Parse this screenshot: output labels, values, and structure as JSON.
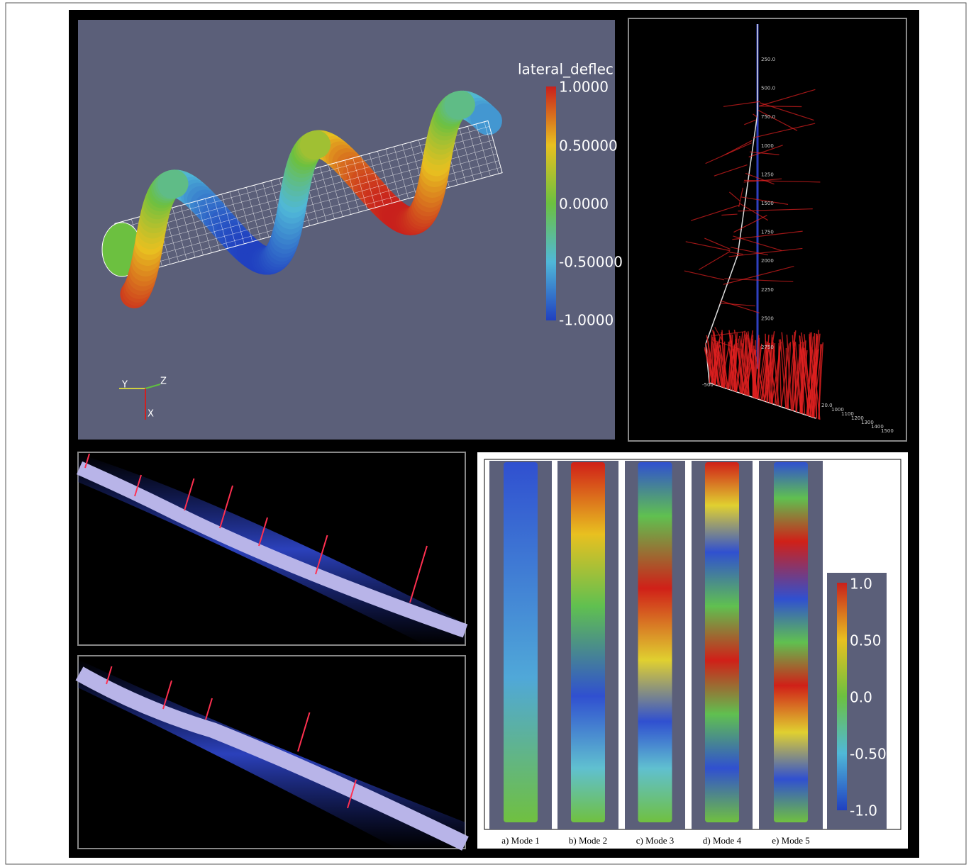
{
  "helix_panel": {
    "colorbar_title": "lateral_deflec",
    "colorbar_labels": [
      "1.0000",
      "0.50000",
      "0.0000",
      "-0.50000",
      "-1.0000"
    ],
    "axes": [
      "Y",
      "Z",
      "X"
    ]
  },
  "well_panel": {
    "depth_labels": [
      "250.0",
      "500.0",
      "750.0",
      "1000",
      "1250",
      "1500",
      "1750",
      "2000",
      "2250",
      "2500",
      "2750"
    ],
    "bottom_labels": [
      "-500",
      "20.0",
      "1000",
      "1100",
      "1200",
      "1300",
      "1400",
      "1500"
    ]
  },
  "modes_panel": {
    "colorbar_labels": [
      "1.0",
      "0.50",
      "0.0",
      "-0.50",
      "-1.0"
    ],
    "modes": [
      "a) Mode 1",
      "b) Mode 2",
      "c) Mode 3",
      "d) Mode 4",
      "e) Mode 5"
    ]
  }
}
